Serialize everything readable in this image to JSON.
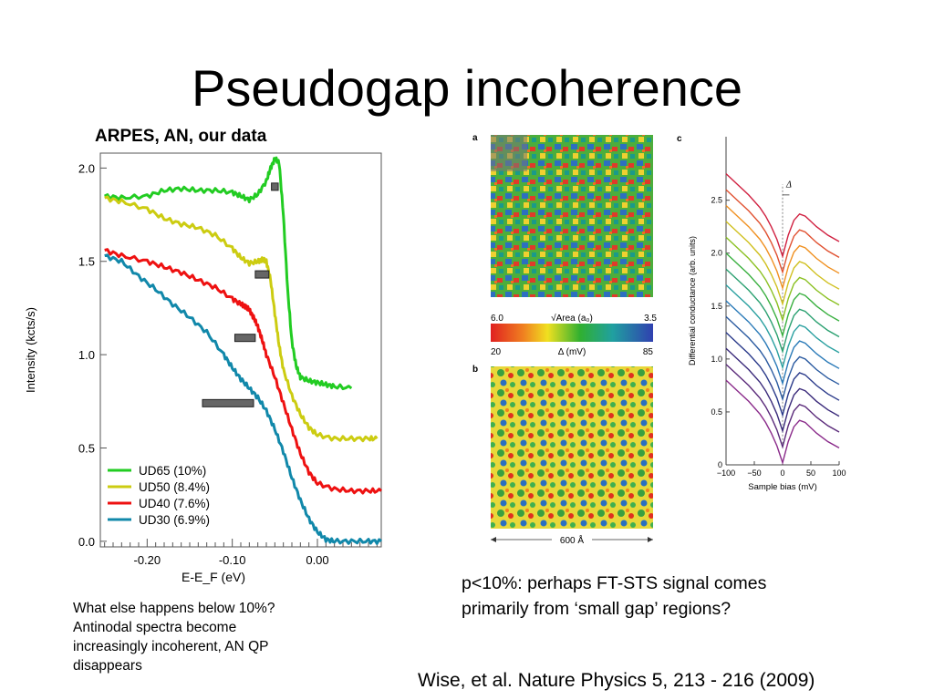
{
  "slide": {
    "title": "Pseudogap incoherence",
    "arpes_label": "ARPES, AN, our data",
    "note_left": [
      "What else happens below 10%?",
      "Antinodal spectra become",
      "increasingly incoherent, AN QP",
      "disappears"
    ],
    "note_right": [
      "p<10%: perhaps FT-STS signal comes",
      "primarily from ‘small gap’ regions?"
    ],
    "citation": "Wise, et al. Nature Physics 5, 213 - 216 (2009)"
  },
  "stm_panel": {
    "label_a": "a",
    "label_b": "b",
    "colorbar_top_left": "6.0",
    "colorbar_top_title": "√Area (a₀)",
    "colorbar_top_right": "3.5",
    "colorbar_bottom_left": "20",
    "colorbar_bottom_title": "Δ (mV)",
    "colorbar_bottom_right": "85",
    "scale_label": "600 Å"
  },
  "chart_data": [
    {
      "type": "line",
      "title": "",
      "xlabel": "E-E_F (eV)",
      "ylabel": "Intensity (kcts/s)",
      "xlim": [
        -0.255,
        0.075
      ],
      "ylim": [
        -0.03,
        2.08
      ],
      "xticks": [
        -0.2,
        -0.1,
        0.0
      ],
      "xtick_labels": [
        "-0.20",
        "-0.10",
        "0.00"
      ],
      "yticks": [
        0.0,
        0.5,
        1.0,
        1.5,
        2.0
      ],
      "ytick_labels": [
        "0.0",
        "0.5",
        "1.0",
        "1.5",
        "2.0"
      ],
      "legend_position": "bottom-left",
      "series": [
        {
          "name": "UD65 (10%)",
          "color": "#22cc22",
          "x": [
            -0.25,
            -0.23,
            -0.2,
            -0.18,
            -0.16,
            -0.14,
            -0.12,
            -0.1,
            -0.09,
            -0.08,
            -0.07,
            -0.06,
            -0.055,
            -0.05,
            -0.045,
            -0.04,
            -0.035,
            -0.03,
            -0.025,
            -0.02,
            -0.01,
            0.0,
            0.01,
            0.02,
            0.04
          ],
          "y": [
            1.85,
            1.84,
            1.85,
            1.88,
            1.89,
            1.88,
            1.88,
            1.87,
            1.85,
            1.83,
            1.86,
            1.93,
            2.0,
            2.05,
            2.03,
            1.75,
            1.35,
            1.07,
            0.94,
            0.88,
            0.86,
            0.85,
            0.84,
            0.83,
            0.82
          ]
        },
        {
          "name": "UD50 (8.4%)",
          "color": "#cccc11",
          "x": [
            -0.25,
            -0.23,
            -0.2,
            -0.18,
            -0.16,
            -0.14,
            -0.12,
            -0.1,
            -0.09,
            -0.08,
            -0.07,
            -0.065,
            -0.06,
            -0.055,
            -0.05,
            -0.045,
            -0.04,
            -0.03,
            -0.02,
            -0.01,
            0.0,
            0.02,
            0.04,
            0.06,
            0.07
          ],
          "y": [
            1.84,
            1.82,
            1.78,
            1.73,
            1.7,
            1.68,
            1.64,
            1.57,
            1.52,
            1.49,
            1.5,
            1.51,
            1.5,
            1.4,
            1.22,
            1.05,
            0.92,
            0.78,
            0.68,
            0.61,
            0.57,
            0.55,
            0.55,
            0.55,
            0.55
          ]
        },
        {
          "name": "UD40 (7.6%)",
          "color": "#ee1111",
          "x": [
            -0.25,
            -0.23,
            -0.2,
            -0.18,
            -0.16,
            -0.14,
            -0.12,
            -0.1,
            -0.09,
            -0.085,
            -0.08,
            -0.075,
            -0.07,
            -0.065,
            -0.06,
            -0.05,
            -0.04,
            -0.03,
            -0.02,
            -0.01,
            0.0,
            0.02,
            0.04,
            0.06,
            0.075
          ],
          "y": [
            1.56,
            1.53,
            1.5,
            1.47,
            1.44,
            1.4,
            1.36,
            1.3,
            1.27,
            1.26,
            1.24,
            1.2,
            1.15,
            1.08,
            1.0,
            0.88,
            0.74,
            0.6,
            0.47,
            0.37,
            0.31,
            0.28,
            0.27,
            0.27,
            0.27
          ]
        },
        {
          "name": "UD30 (6.9%)",
          "color": "#1188aa",
          "x": [
            -0.25,
            -0.23,
            -0.21,
            -0.19,
            -0.17,
            -0.15,
            -0.13,
            -0.11,
            -0.1,
            -0.09,
            -0.08,
            -0.07,
            -0.06,
            -0.05,
            -0.04,
            -0.03,
            -0.02,
            -0.01,
            0.0,
            0.01,
            0.02,
            0.04,
            0.06,
            0.075
          ],
          "y": [
            1.53,
            1.5,
            1.42,
            1.35,
            1.27,
            1.2,
            1.12,
            1.0,
            0.93,
            0.87,
            0.82,
            0.77,
            0.7,
            0.6,
            0.48,
            0.34,
            0.22,
            0.12,
            0.05,
            0.01,
            0.0,
            0.0,
            0.0,
            0.0
          ]
        }
      ]
    },
    {
      "type": "line",
      "title": "",
      "panel_label": "c",
      "xlabel": "Sample bias (mV)",
      "ylabel": "Differential conductance (arb. units)",
      "annotation": "Δ",
      "xlim": [
        -100,
        100
      ],
      "ylim": [
        0,
        3.1
      ],
      "xticks": [
        -100,
        -50,
        0,
        50,
        100
      ],
      "xtick_labels": [
        "−100",
        "−50",
        "0",
        "50",
        "100"
      ],
      "yticks": [
        0,
        0.5,
        1.0,
        1.5,
        2.0,
        2.5
      ],
      "ytick_labels": [
        "0",
        "0.5",
        "1.0",
        "1.5",
        "2.0",
        "2.5"
      ],
      "offsets": [
        0.0,
        0.15,
        0.3,
        0.45,
        0.6,
        0.75,
        0.9,
        1.05,
        1.2,
        1.35,
        1.5,
        1.65,
        1.8,
        1.95
      ],
      "colors": [
        "#8a2a8a",
        "#5a2a7a",
        "#3a2a7a",
        "#2a3a8a",
        "#2a5aa0",
        "#2a7ab8",
        "#2aa0a0",
        "#2aa070",
        "#3ab040",
        "#8ac020",
        "#d0c020",
        "#f09020",
        "#e05030",
        "#d02040"
      ],
      "base_curve": {
        "x": [
          -100,
          -80,
          -60,
          -40,
          -30,
          -20,
          -10,
          -5,
          0,
          5,
          10,
          20,
          30,
          40,
          60,
          80,
          100
        ],
        "y": [
          0.8,
          0.7,
          0.6,
          0.48,
          0.4,
          0.3,
          0.18,
          0.1,
          0.02,
          0.12,
          0.22,
          0.36,
          0.42,
          0.4,
          0.3,
          0.22,
          0.16
        ]
      }
    }
  ]
}
